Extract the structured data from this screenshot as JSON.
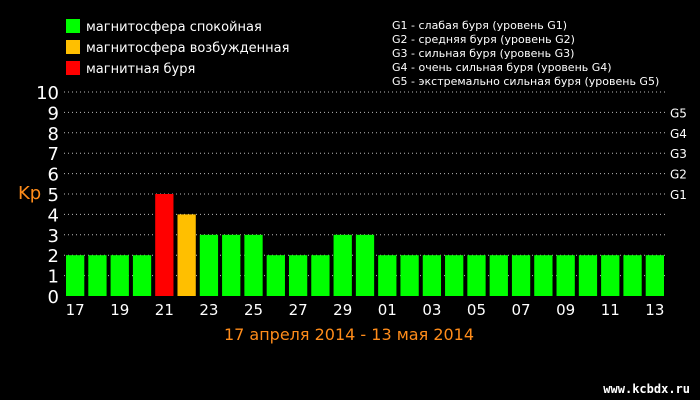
{
  "legend": [
    {
      "label": "магнитосфера спокойная",
      "color": "#00ff00"
    },
    {
      "label": "магнитосфера возбужденная",
      "color": "#ffbf00"
    },
    {
      "label": "магнитная буря",
      "color": "#ff0000"
    }
  ],
  "storm_levels": [
    "G1 - слабая буря (уровень G1)",
    "G2 - средняя буря (уровень G2)",
    "G3 - сильная буря (уровень G3)",
    "G4 - очень сильная буря (уровень G4)",
    "G5 - экстремально сильная буря (уровень G5)"
  ],
  "watermark": "www.kcbdx.ru",
  "chart_data": {
    "type": "bar",
    "ylabel": "Kp",
    "subtitle": "17 апреля 2014 - 13 мая 2014",
    "ylim": [
      0,
      10
    ],
    "yticks": [
      "0",
      "1",
      "2",
      "3",
      "4",
      "5",
      "6",
      "7",
      "8",
      "9",
      "10"
    ],
    "right_ticks": [
      {
        "label": "G1",
        "value": 5
      },
      {
        "label": "G2",
        "value": 6
      },
      {
        "label": "G3",
        "value": 7
      },
      {
        "label": "G4",
        "value": 8
      },
      {
        "label": "G5",
        "value": 9
      }
    ],
    "x_tick_labels": [
      "17",
      "19",
      "21",
      "23",
      "25",
      "27",
      "29",
      "01",
      "03",
      "05",
      "07",
      "09",
      "11",
      "13"
    ],
    "categories": [
      "17",
      "18",
      "19",
      "20",
      "21",
      "22",
      "23",
      "24",
      "25",
      "26",
      "27",
      "28",
      "29",
      "30",
      "01",
      "02",
      "03",
      "04",
      "05",
      "06",
      "07",
      "08",
      "09",
      "10",
      "11",
      "12",
      "13"
    ],
    "values": [
      2,
      2,
      2,
      2,
      5,
      4,
      3,
      3,
      3,
      2,
      2,
      2,
      3,
      3,
      2,
      2,
      2,
      2,
      2,
      2,
      2,
      2,
      2,
      2,
      2,
      2,
      2
    ],
    "colors": {
      "quiet": "#00ff00",
      "active": "#ffbf00",
      "storm": "#ff0000"
    },
    "grid": true
  }
}
